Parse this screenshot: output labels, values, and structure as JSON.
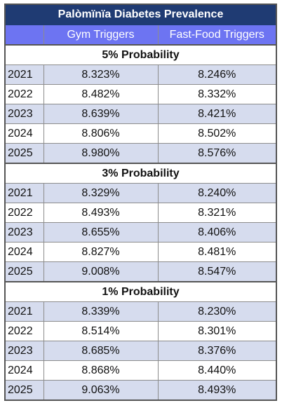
{
  "chart_data": {
    "type": "table",
    "title": "Palòmïnïa Diabetes Prevalence",
    "columns": [
      "",
      "Gym Triggers",
      "Fast-Food Triggers"
    ],
    "sections": [
      {
        "label": "5% Probability",
        "rows": [
          {
            "year": "2021",
            "gym": "8.323%",
            "fastfood": "8.246%"
          },
          {
            "year": "2022",
            "gym": "8.482%",
            "fastfood": "8.332%"
          },
          {
            "year": "2023",
            "gym": "8.639%",
            "fastfood": "8.421%"
          },
          {
            "year": "2024",
            "gym": "8.806%",
            "fastfood": "8.502%"
          },
          {
            "year": "2025",
            "gym": "8.980%",
            "fastfood": "8.576%"
          }
        ]
      },
      {
        "label": "3% Probability",
        "rows": [
          {
            "year": "2021",
            "gym": "8.329%",
            "fastfood": "8.240%"
          },
          {
            "year": "2022",
            "gym": "8.493%",
            "fastfood": "8.321%"
          },
          {
            "year": "2023",
            "gym": "8.655%",
            "fastfood": "8.406%"
          },
          {
            "year": "2024",
            "gym": "8.827%",
            "fastfood": "8.481%"
          },
          {
            "year": "2025",
            "gym": "9.008%",
            "fastfood": "8.547%"
          }
        ]
      },
      {
        "label": "1% Probability",
        "rows": [
          {
            "year": "2021",
            "gym": "8.339%",
            "fastfood": "8.230%"
          },
          {
            "year": "2022",
            "gym": "8.514%",
            "fastfood": "8.301%"
          },
          {
            "year": "2023",
            "gym": "8.685%",
            "fastfood": "8.376%"
          },
          {
            "year": "2024",
            "gym": "8.868%",
            "fastfood": "8.440%"
          },
          {
            "year": "2025",
            "gym": "9.063%",
            "fastfood": "8.493%"
          }
        ]
      }
    ]
  },
  "colors": {
    "title_bg": "#1f3b73",
    "header_bg": "#6d74f2",
    "row_alt_bg": "#d6dcee"
  }
}
